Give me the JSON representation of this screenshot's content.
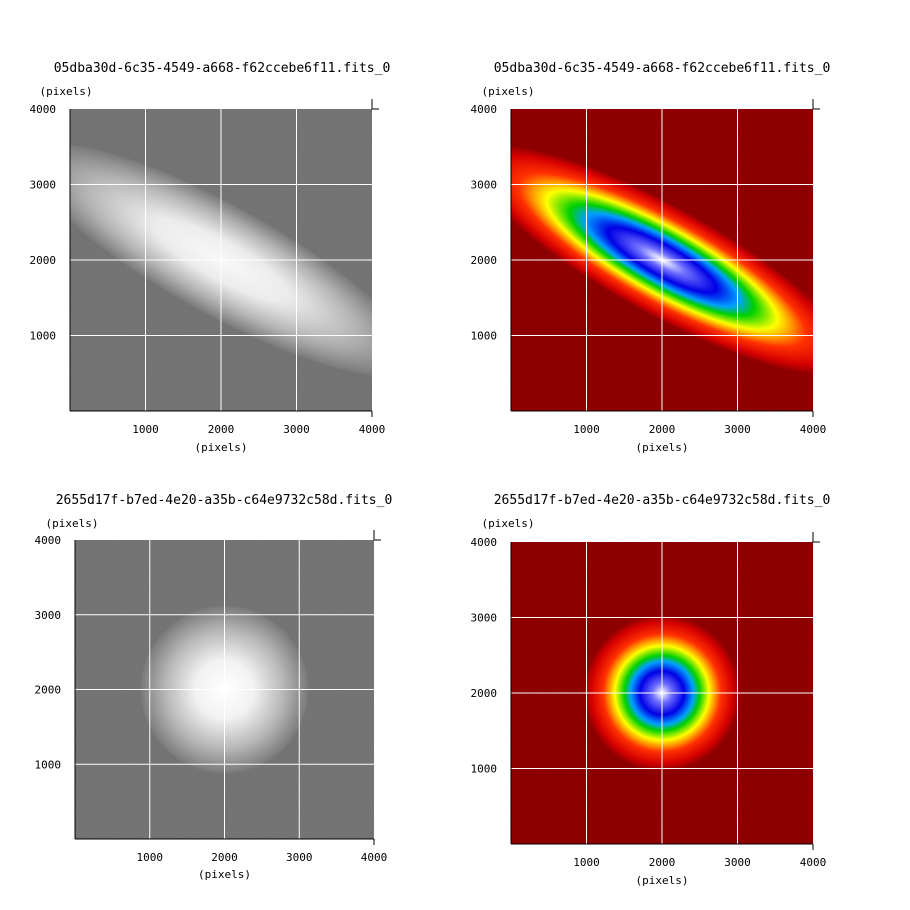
{
  "panels": [
    {
      "title": "05dba30d-6c35-4549-a668-f62ccebe6f11.fits_0",
      "colormap": "grey",
      "source": "elongated",
      "x_label": "(pixels)",
      "y_label": "(pixels)",
      "x_ticks": [
        "1000",
        "2000",
        "3000",
        "4000"
      ],
      "y_ticks": [
        "1000",
        "2000",
        "3000",
        "4000"
      ]
    },
    {
      "title": "05dba30d-6c35-4549-a668-f62ccebe6f11.fits_0",
      "colormap": "rainbow",
      "source": "elongated",
      "x_label": "(pixels)",
      "y_label": "(pixels)",
      "x_ticks": [
        "1000",
        "2000",
        "3000",
        "4000"
      ],
      "y_ticks": [
        "1000",
        "2000",
        "3000",
        "4000"
      ]
    },
    {
      "title": "2655d17f-b7ed-4e20-a35b-c64e9732c58d.fits_0",
      "colormap": "grey",
      "source": "round",
      "x_label": "(pixels)",
      "y_label": "(pixels)",
      "x_ticks": [
        "1000",
        "2000",
        "3000",
        "4000"
      ],
      "y_ticks": [
        "1000",
        "2000",
        "3000",
        "4000"
      ]
    },
    {
      "title": "2655d17f-b7ed-4e20-a35b-c64e9732c58d.fits_0",
      "colormap": "rainbow",
      "source": "round",
      "x_label": "(pixels)",
      "y_label": "(pixels)",
      "x_ticks": [
        "1000",
        "2000",
        "3000",
        "4000"
      ],
      "y_ticks": [
        "1000",
        "2000",
        "3000",
        "4000"
      ]
    }
  ],
  "colors": {
    "grey_background": "#7a7a7a",
    "grey_peak": "#ffffff",
    "rainbow_background": "#8b0000",
    "rainbow_stops": [
      "#8b0000",
      "#ff0000",
      "#ffff00",
      "#00cc00",
      "#0000ff",
      "#ffffff"
    ],
    "grid_line": "#ffffff"
  }
}
